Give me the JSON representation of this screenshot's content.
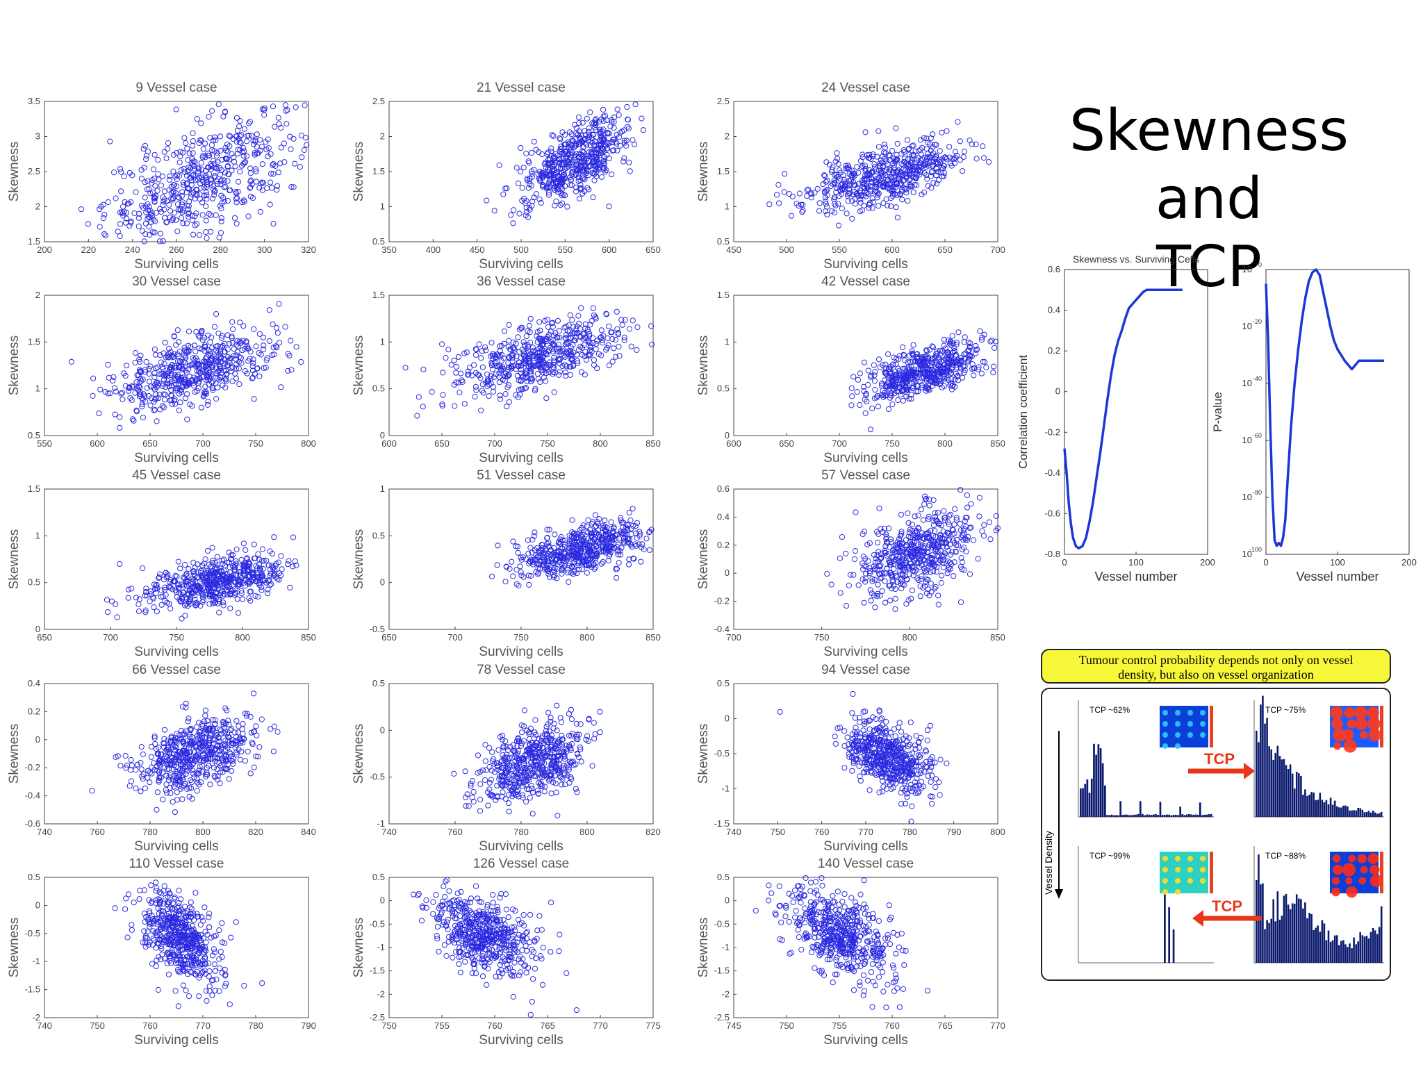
{
  "slide": {
    "title_line1": "Skewness and",
    "title_line2": "TCP"
  },
  "colors": {
    "scatter": "#2a2ae0",
    "line": "#1d36d6",
    "tcp_bar": "#0b1a6e",
    "highlight": "#f7f73a",
    "arrow": "#e8361a"
  },
  "chart_data": [
    {
      "type": "scatter",
      "title": "9 Vessel case",
      "xlabel": "Surviving cells",
      "ylabel": "Skewness",
      "xlim": [
        200,
        320
      ],
      "ylim": [
        1.5,
        3.5
      ],
      "xticks": [
        "200",
        "220",
        "240",
        "260",
        "280",
        "300",
        "320"
      ],
      "yticks": [
        "1.5",
        "2",
        "2.5",
        "3",
        "3.5"
      ],
      "cloud": {
        "center": [
          272,
          2.4
        ],
        "spread": [
          22,
          0.38
        ],
        "slope": 0.012
      }
    },
    {
      "type": "scatter",
      "title": "21 Vessel case",
      "xlabel": "Surviving cells",
      "ylabel": "Skewness",
      "xlim": [
        350,
        650
      ],
      "ylim": [
        0.5,
        2.5
      ],
      "xticks": [
        "350",
        "400",
        "450",
        "500",
        "550",
        "600",
        "650"
      ],
      "yticks": [
        "0.5",
        "1",
        "1.5",
        "2",
        "2.5"
      ],
      "cloud": {
        "center": [
          560,
          1.65
        ],
        "spread": [
          32,
          0.25
        ],
        "slope": 0.006
      }
    },
    {
      "type": "scatter",
      "title": "24 Vessel case",
      "xlabel": "Surviving cells",
      "ylabel": "Skewness",
      "xlim": [
        450,
        700
      ],
      "ylim": [
        0.5,
        2.5
      ],
      "xticks": [
        "450",
        "500",
        "550",
        "600",
        "650",
        "700"
      ],
      "yticks": [
        "0.5",
        "1",
        "1.5",
        "2",
        "2.5"
      ],
      "cloud": {
        "center": [
          595,
          1.45
        ],
        "spread": [
          38,
          0.2
        ],
        "slope": 0.004
      }
    },
    {
      "type": "scatter",
      "title": "30 Vessel case",
      "xlabel": "Surviving cells",
      "ylabel": "Skewness",
      "xlim": [
        550,
        800
      ],
      "ylim": [
        0.5,
        2
      ],
      "xticks": [
        "550",
        "600",
        "650",
        "700",
        "750",
        "800"
      ],
      "yticks": [
        "0.5",
        "1",
        "1.5",
        "2"
      ],
      "cloud": {
        "center": [
          690,
          1.2
        ],
        "spread": [
          40,
          0.2
        ],
        "slope": 0.003
      }
    },
    {
      "type": "scatter",
      "title": "36 Vessel case",
      "xlabel": "Surviving cells",
      "ylabel": "Skewness",
      "xlim": [
        600,
        850
      ],
      "ylim": [
        0,
        1.5
      ],
      "xticks": [
        "600",
        "650",
        "700",
        "750",
        "800",
        "850"
      ],
      "yticks": [
        "0",
        "0.5",
        "1",
        "1.5"
      ],
      "cloud": {
        "center": [
          740,
          0.85
        ],
        "spread": [
          40,
          0.17
        ],
        "slope": 0.003
      }
    },
    {
      "type": "scatter",
      "title": "42 Vessel case",
      "xlabel": "Surviving cells",
      "ylabel": "Skewness",
      "xlim": [
        600,
        850
      ],
      "ylim": [
        0,
        1.5
      ],
      "xticks": [
        "600",
        "650",
        "700",
        "750",
        "800",
        "850"
      ],
      "yticks": [
        "0",
        "0.5",
        "1",
        "1.5"
      ],
      "cloud": {
        "center": [
          780,
          0.68
        ],
        "spread": [
          28,
          0.13
        ],
        "slope": 0.003
      }
    },
    {
      "type": "scatter",
      "title": "45 Vessel case",
      "xlabel": "Surviving cells",
      "ylabel": "Skewness",
      "xlim": [
        650,
        850
      ],
      "ylim": [
        0,
        1.5
      ],
      "xticks": [
        "650",
        "700",
        "750",
        "800",
        "850"
      ],
      "yticks": [
        "0",
        "0.5",
        "1",
        "1.5"
      ],
      "cloud": {
        "center": [
          780,
          0.52
        ],
        "spread": [
          28,
          0.13
        ],
        "slope": 0.003
      }
    },
    {
      "type": "scatter",
      "title": "51 Vessel case",
      "xlabel": "Surviving cells",
      "ylabel": "Skewness",
      "xlim": [
        650,
        850
      ],
      "ylim": [
        -0.5,
        1
      ],
      "xticks": [
        "650",
        "700",
        "750",
        "800",
        "850"
      ],
      "yticks": [
        "-0.5",
        "0",
        "0.5",
        "1"
      ],
      "cloud": {
        "center": [
          795,
          0.35
        ],
        "spread": [
          25,
          0.13
        ],
        "slope": 0.003
      }
    },
    {
      "type": "scatter",
      "title": "57 Vessel case",
      "xlabel": "Surviving cells",
      "ylabel": "Skewness",
      "xlim": [
        700,
        850
      ],
      "ylim": [
        -0.4,
        0.6
      ],
      "xticks": [
        "700",
        "750",
        "800",
        "850"
      ],
      "yticks": [
        "-0.4",
        "-0.2",
        "0",
        "0.2",
        "0.4",
        "0.6"
      ],
      "cloud": {
        "center": [
          805,
          0.15
        ],
        "spread": [
          18,
          0.14
        ],
        "slope": 0.004
      }
    },
    {
      "type": "scatter",
      "title": "66 Vessel case",
      "xlabel": "Surviving cells",
      "ylabel": "Skewness",
      "xlim": [
        740,
        840
      ],
      "ylim": [
        -0.6,
        0.4
      ],
      "xticks": [
        "740",
        "760",
        "780",
        "800",
        "820",
        "840"
      ],
      "yticks": [
        "-0.6",
        "-0.4",
        "-0.2",
        "0",
        "0.2",
        "0.4"
      ],
      "cloud": {
        "center": [
          798,
          -0.1
        ],
        "spread": [
          11,
          0.12
        ],
        "slope": 0.005
      }
    },
    {
      "type": "scatter",
      "title": "78 Vessel case",
      "xlabel": "Surviving cells",
      "ylabel": "Skewness",
      "xlim": [
        740,
        820
      ],
      "ylim": [
        -1,
        0.5
      ],
      "xticks": [
        "740",
        "760",
        "780",
        "800",
        "820"
      ],
      "yticks": [
        "-1",
        "-0.5",
        "0",
        "0.5"
      ],
      "cloud": {
        "center": [
          783,
          -0.35
        ],
        "spread": [
          8,
          0.2
        ],
        "slope": 0.01
      }
    },
    {
      "type": "scatter",
      "title": "94 Vessel case",
      "xlabel": "Surviving cells",
      "ylabel": "Skewness",
      "xlim": [
        740,
        800
      ],
      "ylim": [
        -1.5,
        0.5
      ],
      "xticks": [
        "740",
        "750",
        "760",
        "770",
        "780",
        "790",
        "800"
      ],
      "yticks": [
        "-1.5",
        "-1",
        "-0.5",
        "0",
        "0.5"
      ],
      "cloud": {
        "center": [
          775,
          -0.55
        ],
        "spread": [
          5,
          0.25
        ],
        "slope": -0.02
      }
    },
    {
      "type": "scatter",
      "title": "110 Vessel case",
      "xlabel": "Surviving cells",
      "ylabel": "Skewness",
      "xlim": [
        740,
        790
      ],
      "ylim": [
        -2,
        0.5
      ],
      "xticks": [
        "740",
        "750",
        "760",
        "770",
        "780",
        "790"
      ],
      "yticks": [
        "-2",
        "-1.5",
        "-1",
        "-0.5",
        "0",
        "0.5"
      ],
      "cloud": {
        "center": [
          766,
          -0.6
        ],
        "spread": [
          3.5,
          0.35
        ],
        "slope": -0.05
      }
    },
    {
      "type": "scatter",
      "title": "126 Vessel case",
      "xlabel": "Surviving cells",
      "ylabel": "Skewness",
      "xlim": [
        750,
        775
      ],
      "ylim": [
        -2.5,
        0.5
      ],
      "xticks": [
        "750",
        "755",
        "760",
        "765",
        "770",
        "775"
      ],
      "yticks": [
        "-2.5",
        "-2",
        "-1.5",
        "-1",
        "-0.5",
        "0",
        "0.5"
      ],
      "cloud": {
        "center": [
          759,
          -0.75
        ],
        "spread": [
          2.5,
          0.4
        ],
        "slope": -0.08
      }
    },
    {
      "type": "scatter",
      "title": "140 Vessel case",
      "xlabel": "Surviving cells",
      "ylabel": "Skewness",
      "xlim": [
        745,
        770
      ],
      "ylim": [
        -2.5,
        0.5
      ],
      "xticks": [
        "745",
        "750",
        "755",
        "760",
        "765",
        "770"
      ],
      "yticks": [
        "-2.5",
        "-2",
        "-1.5",
        "-1",
        "-0.5",
        "0",
        "0.5"
      ],
      "cloud": {
        "center": [
          755,
          -0.7
        ],
        "spread": [
          2.6,
          0.45
        ],
        "slope": -0.1
      }
    },
    {
      "type": "line",
      "title": "Skewness vs. Surviving Cells",
      "xlabel": "Vessel number",
      "ylabel": "Correlation coefficient",
      "xlim": [
        0,
        200
      ],
      "ylim": [
        -0.8,
        0.6
      ],
      "xticks": [
        "0",
        "100",
        "200"
      ],
      "yticks": [
        "-0.8",
        "-0.6",
        "-0.4",
        "-0.2",
        "0",
        "0.2",
        "0.4",
        "0.6"
      ],
      "x": [
        0,
        3,
        6,
        9,
        12,
        16,
        20,
        25,
        30,
        35,
        40,
        45,
        50,
        55,
        60,
        65,
        70,
        75,
        80,
        85,
        90,
        95,
        100,
        105,
        110,
        115,
        120,
        130,
        140,
        150,
        165
      ],
      "y": [
        -0.28,
        -0.4,
        -0.55,
        -0.65,
        -0.72,
        -0.76,
        -0.77,
        -0.76,
        -0.72,
        -0.64,
        -0.54,
        -0.42,
        -0.3,
        -0.17,
        -0.04,
        0.08,
        0.18,
        0.25,
        0.3,
        0.36,
        0.41,
        0.43,
        0.45,
        0.47,
        0.49,
        0.5,
        0.5,
        0.5,
        0.5,
        0.5,
        0.5
      ]
    },
    {
      "type": "line",
      "title": "",
      "xlabel": "Vessel number",
      "ylabel": "P-value",
      "log_y": true,
      "xlim": [
        0,
        200
      ],
      "ylim": [
        -100,
        0
      ],
      "xticks": [
        "0",
        "100",
        "200"
      ],
      "ytick_mantissa": "10",
      "ytick_exponents": [
        "0",
        "-20",
        "-40",
        "-60",
        "-80",
        "-100"
      ],
      "x": [
        0,
        3,
        6,
        9,
        12,
        15,
        18,
        21,
        24,
        27,
        30,
        35,
        40,
        45,
        50,
        55,
        60,
        65,
        70,
        75,
        80,
        85,
        90,
        95,
        100,
        110,
        120,
        130,
        140,
        150,
        165
      ],
      "y": [
        -5,
        -25,
        -55,
        -80,
        -95,
        -97,
        -96,
        -97,
        -94,
        -88,
        -75,
        -55,
        -40,
        -28,
        -18,
        -10,
        -4,
        -1,
        0,
        -2,
        -8,
        -14,
        -20,
        -25,
        -28,
        -32,
        -35,
        -32,
        -32,
        -32,
        -32
      ]
    }
  ],
  "tcp_figure": {
    "banner_line1": "Tumour control probability depends not only on vessel",
    "banner_line2": "density, but also on vessel organization",
    "panels": [
      {
        "label": "TCP ~62%"
      },
      {
        "label": "TCP ~75%"
      },
      {
        "label": "TCP ~99%"
      },
      {
        "label": "TCP ~88%"
      }
    ],
    "arrow_label_1": "TCP",
    "arrow_label_2": "TCP",
    "density_label": "Vessel Density"
  }
}
